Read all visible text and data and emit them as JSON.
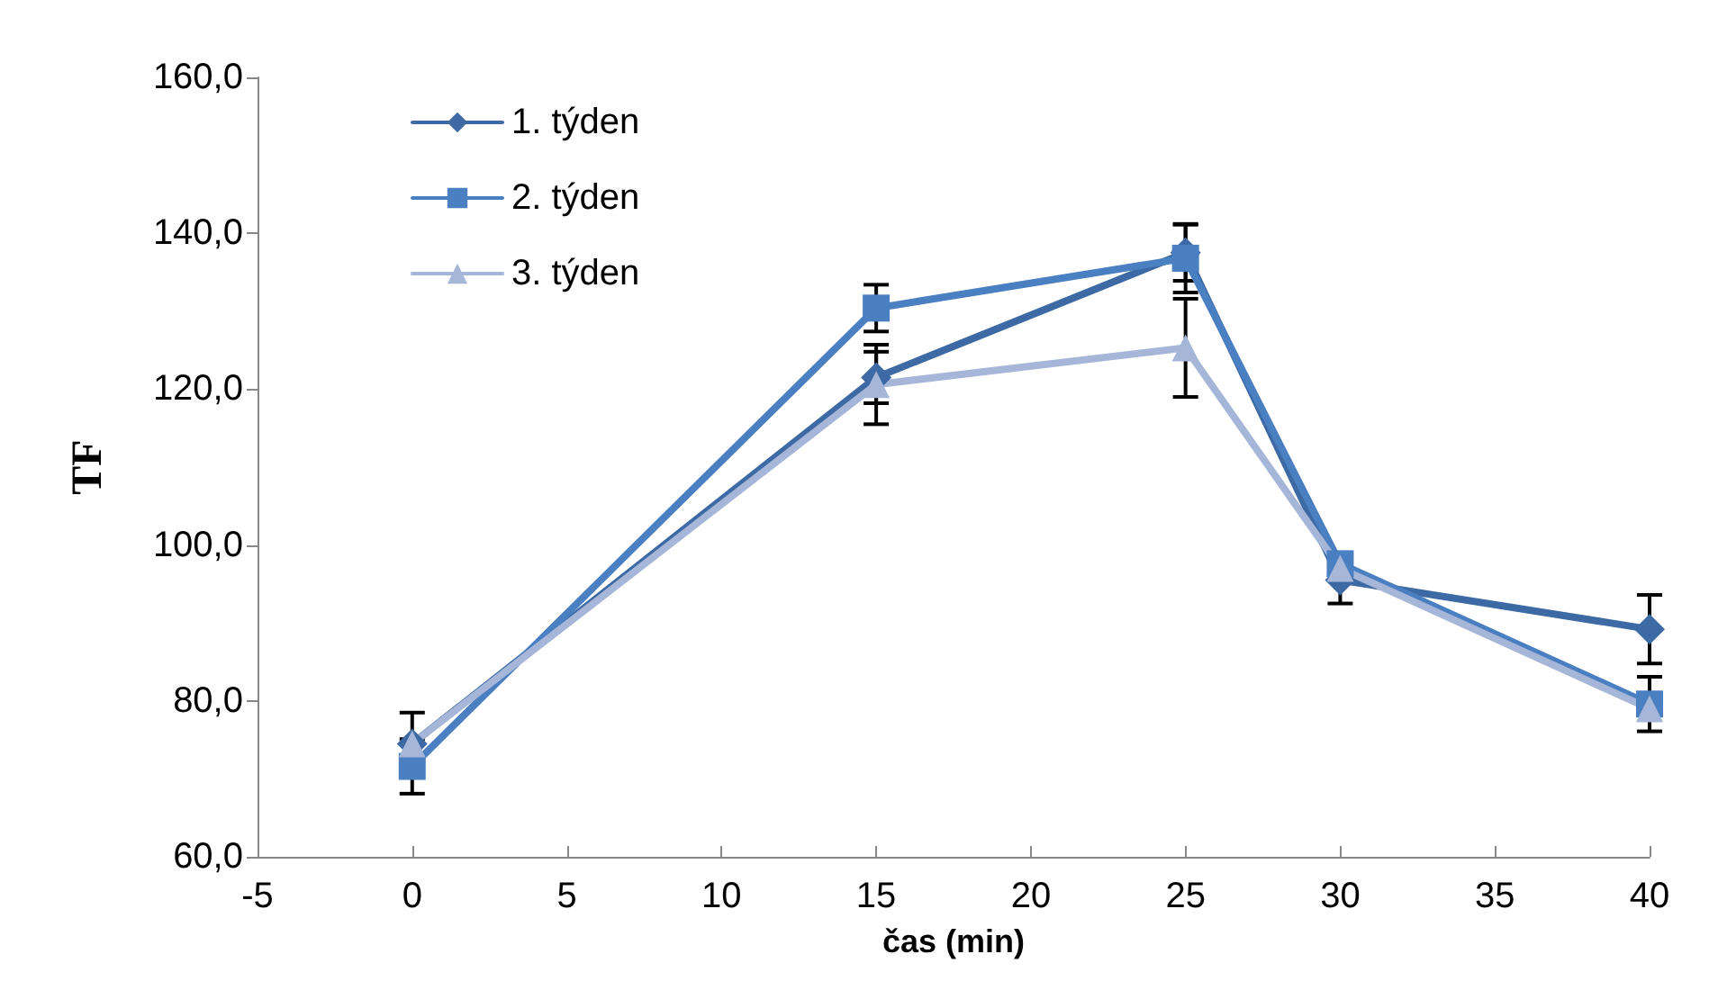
{
  "chart_data": {
    "type": "line",
    "xlabel": "čas (min)",
    "ylabel": "TF",
    "x": [
      0,
      15,
      25,
      30,
      40
    ],
    "series": [
      {
        "name": "1. týden",
        "color": "#3d6aa4",
        "marker": "diamond",
        "values": [
          74.5,
          121.5,
          137.5,
          95.5,
          89.2
        ],
        "errors": [
          4,
          3.3,
          3.6,
          3,
          4.4
        ]
      },
      {
        "name": "2. týden",
        "color": "#4a7fc1",
        "marker": "square",
        "values": [
          71.6,
          130.4,
          136.8,
          97.6,
          79.6
        ],
        "errors": [
          3.5,
          3,
          4.4,
          null,
          3.5
        ]
      },
      {
        "name": "3. týden",
        "color": "#a5b6d8",
        "marker": "triangle",
        "values": [
          74.5,
          120.6,
          125.3,
          97,
          79
        ],
        "errors": [
          null,
          5.1,
          6.3,
          null,
          null
        ]
      }
    ],
    "xlim": [
      -5,
      40
    ],
    "xticks": [
      -5,
      0,
      5,
      10,
      15,
      20,
      25,
      30,
      35,
      40
    ],
    "ylim": [
      60,
      160
    ],
    "yticks": [
      {
        "value": 60,
        "label": "60,0"
      },
      {
        "value": 80,
        "label": "80,0"
      },
      {
        "value": 100,
        "label": "100,0"
      },
      {
        "value": 120,
        "label": "120,0"
      },
      {
        "value": 140,
        "label": "140,0"
      },
      {
        "value": 160,
        "label": "160,0"
      }
    ],
    "grid": false,
    "legend": "top left",
    "line_style": "solid"
  }
}
